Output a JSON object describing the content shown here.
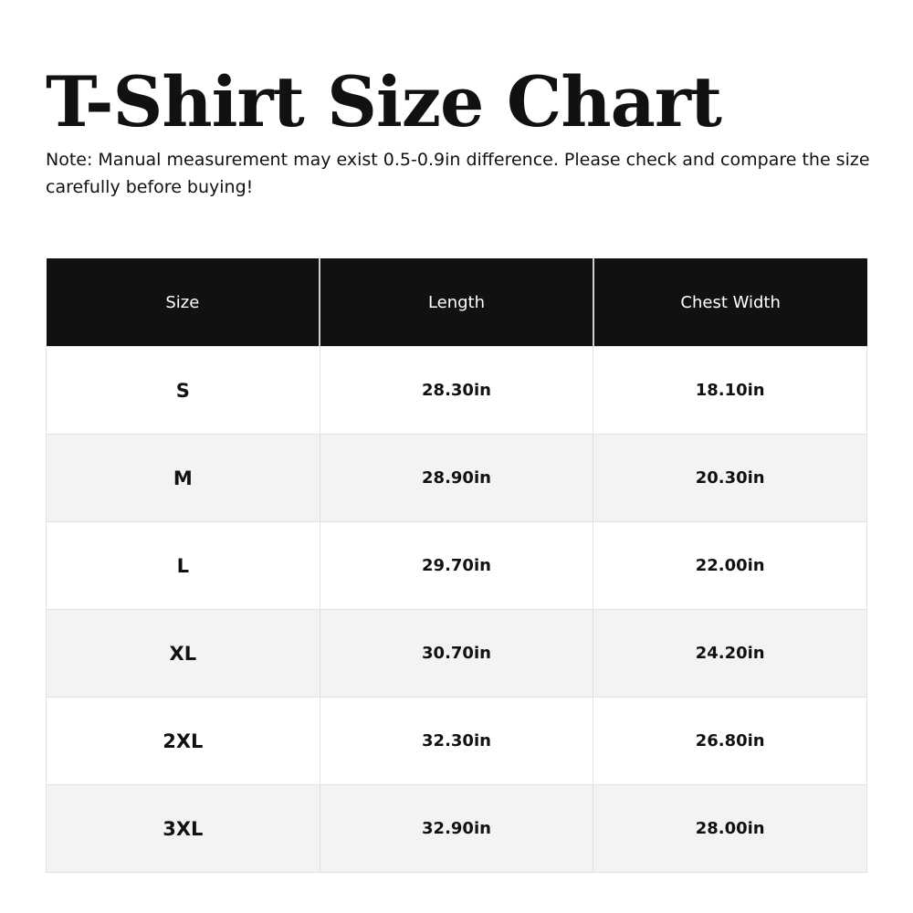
{
  "title": "T-Shirt Size Chart",
  "note": "Note: Manual measurement may exist 0.5-0.9in difference. Please check and compare the size carefully before buying!",
  "table": {
    "headers": [
      "Size",
      "Length",
      "Chest Width"
    ],
    "rows": [
      [
        "S",
        "28.30in",
        "18.10in"
      ],
      [
        "M",
        "28.90in",
        "20.30in"
      ],
      [
        "L",
        "29.70in",
        "22.00in"
      ],
      [
        "XL",
        "30.70in",
        "24.20in"
      ],
      [
        "2XL",
        "32.30in",
        "26.80in"
      ],
      [
        "3XL",
        "32.90in",
        "28.00in"
      ]
    ]
  },
  "colors": {
    "header_bg": "#111111",
    "alt_row_bg": "#f3f3f3"
  }
}
